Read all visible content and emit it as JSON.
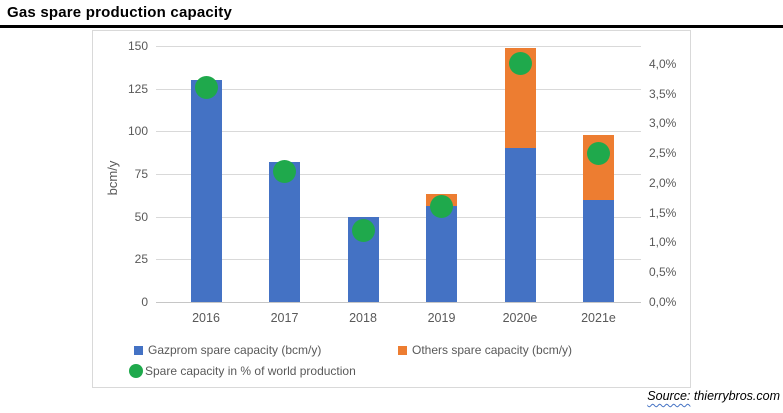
{
  "title": "Gas spare production capacity",
  "source": {
    "prefix": "Source:",
    "site": " thierrybros.com"
  },
  "chart_data": {
    "type": "bar",
    "title": "Gas spare production capacity",
    "categories": [
      "2016",
      "2017",
      "2018",
      "2019",
      "2020e",
      "2021e"
    ],
    "series": [
      {
        "name": "Gazprom spare capacity (bcm/y)",
        "kind": "bar-stacked",
        "axis": "left",
        "marker": "square",
        "color": "#4472C4",
        "values": [
          130,
          82,
          50,
          56,
          90,
          60
        ]
      },
      {
        "name": "Others spare capacity (bcm/y)",
        "kind": "bar-stacked",
        "axis": "left",
        "marker": "square",
        "color": "#ED7D31",
        "values": [
          0,
          0,
          0,
          7,
          59,
          38
        ]
      },
      {
        "name": "Spare capacity in % of world production",
        "kind": "scatter",
        "axis": "right",
        "marker": "circle",
        "color": "#1FA94C",
        "values_pct": [
          3.6,
          2.2,
          1.2,
          1.6,
          4.0,
          2.5
        ]
      }
    ],
    "stacked_totals": [
      130,
      82,
      50,
      63,
      149,
      98
    ],
    "left_axis": {
      "label": "bcm/y",
      "min": 0,
      "max": 150,
      "ticks": [
        0,
        25,
        50,
        75,
        100,
        125,
        150
      ]
    },
    "right_axis": {
      "ticks": [
        {
          "label": "0,0%",
          "value": 0.0
        },
        {
          "label": "0,5%",
          "value": 0.5
        },
        {
          "label": "1,0%",
          "value": 1.0
        },
        {
          "label": "1,5%",
          "value": 1.5
        },
        {
          "label": "2,0%",
          "value": 2.0
        },
        {
          "label": "2,5%",
          "value": 2.5
        },
        {
          "label": "3,0%",
          "value": 3.0
        },
        {
          "label": "3,5%",
          "value": 3.5
        },
        {
          "label": "4,0%",
          "value": 4.0
        }
      ]
    },
    "grid": true,
    "legend_position": "bottom",
    "colors": {
      "grid": "#D9D9D9",
      "axis_text": "#595959",
      "title_rule": "#000000"
    }
  }
}
